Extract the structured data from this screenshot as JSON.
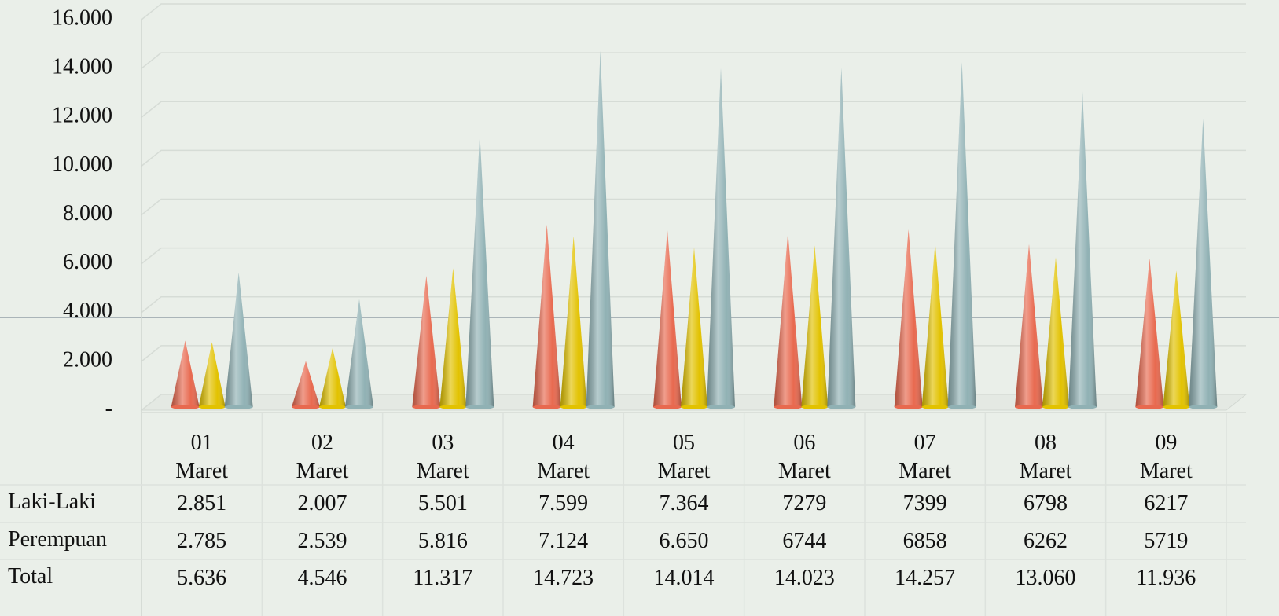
{
  "chart_data": {
    "type": "cone",
    "categories": [
      "01 Maret",
      "02 Maret",
      "03 Maret",
      "04 Maret",
      "05 Maret",
      "06 Maret",
      "07 Maret",
      "08 Maret",
      "09 Maret"
    ],
    "series": [
      {
        "name": "Laki-Laki",
        "color": "#e8694f",
        "values": [
          2851,
          2007,
          5501,
          7599,
          7364,
          7279,
          7399,
          6798,
          6217
        ],
        "value_labels": [
          "2.851",
          "2.007",
          "5.501",
          "7.599",
          "7.364",
          "7279",
          "7399",
          "6798",
          "6217"
        ]
      },
      {
        "name": "Perempuan",
        "color": "#e2c200",
        "values": [
          2785,
          2539,
          5816,
          7124,
          6650,
          6744,
          6858,
          6262,
          5719
        ],
        "value_labels": [
          "2.785",
          "2.539",
          "5.816",
          "7.124",
          "6.650",
          "6744",
          "6858",
          "6262",
          "5719"
        ]
      },
      {
        "name": "Total",
        "color": "#90b1b4",
        "values": [
          5636,
          4546,
          11317,
          14723,
          14014,
          14023,
          14257,
          13060,
          11936
        ],
        "value_labels": [
          "5.636",
          "4.546",
          "11.317",
          "14.723",
          "14.014",
          "14.023",
          "14.257",
          "13.060",
          "11.936"
        ]
      }
    ],
    "ylim": [
      0,
      16000
    ],
    "yticks": [
      {
        "value": 0,
        "label": "-"
      },
      {
        "value": 2000,
        "label": "2.000"
      },
      {
        "value": 4000,
        "label": "4.000"
      },
      {
        "value": 6000,
        "label": "6.000"
      },
      {
        "value": 8000,
        "label": "8.000"
      },
      {
        "value": 10000,
        "label": "10.000"
      },
      {
        "value": 12000,
        "label": "12.000"
      },
      {
        "value": 14000,
        "label": "14.000"
      },
      {
        "value": 16000,
        "label": "16.000"
      }
    ],
    "grid": true
  }
}
